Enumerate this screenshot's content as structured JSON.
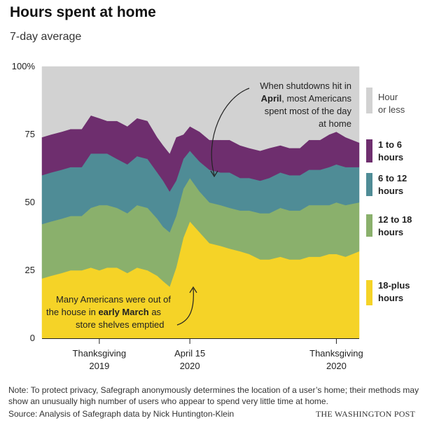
{
  "title": "Hours spent at home",
  "subtitle": "7-day average",
  "note": "Note: To protect privacy, Safegraph anonymously determines the location of a user’s home; their methods may show an unusually high number of users who appear to spend very little time at home.",
  "source": "Source: Analysis of Safegraph data by Nick Huntington-Klein",
  "brand": "THE WASHINGTON POST",
  "annotations": {
    "april_line1": "When shutdowns hit in",
    "april_line2_bold": "April",
    "april_line2_rest": ", most Americans",
    "april_line3": "spent most of the day",
    "april_line4": "at home",
    "march_line1": "Many Americans were out of",
    "march_line2_pre": "the house in ",
    "march_line2_bold": "early March",
    "march_line2_post": " as",
    "march_line3": "store shelves emptied"
  },
  "chart_data": {
    "type": "area",
    "stacked": true,
    "ylim": [
      0,
      100
    ],
    "yticks": [
      "0",
      "25",
      "50",
      "75",
      "100%"
    ],
    "ytick_values": [
      0,
      25,
      50,
      75,
      100
    ],
    "x_range": [
      "2019-09-01",
      "2020-12-31"
    ],
    "xticks": [
      {
        "date": "2019-11-28",
        "line1": "Thanksgiving",
        "line2": "2019"
      },
      {
        "date": "2020-04-15",
        "line1": "April 15",
        "line2": "2020"
      },
      {
        "date": "2020-11-26",
        "line1": "Thanksgiving",
        "line2": "2020"
      }
    ],
    "x": [
      "2019-09-01",
      "2019-09-15",
      "2019-10-01",
      "2019-10-15",
      "2019-11-01",
      "2019-11-15",
      "2019-11-28",
      "2019-12-10",
      "2019-12-25",
      "2020-01-10",
      "2020-01-25",
      "2020-02-10",
      "2020-02-25",
      "2020-03-05",
      "2020-03-15",
      "2020-03-25",
      "2020-04-05",
      "2020-04-15",
      "2020-04-30",
      "2020-05-15",
      "2020-06-01",
      "2020-06-15",
      "2020-07-01",
      "2020-07-15",
      "2020-08-01",
      "2020-08-15",
      "2020-09-01",
      "2020-09-15",
      "2020-10-01",
      "2020-10-15",
      "2020-11-01",
      "2020-11-15",
      "2020-11-26",
      "2020-12-10",
      "2020-12-31"
    ],
    "series": [
      {
        "name": "18-plus hours",
        "color": "#f5d327",
        "values": [
          22,
          23,
          24,
          25,
          25,
          26,
          25,
          26,
          26,
          24,
          26,
          25,
          23,
          21,
          19,
          26,
          37,
          43,
          39,
          35,
          34,
          33,
          32,
          31,
          29,
          29,
          30,
          29,
          29,
          30,
          30,
          31,
          31,
          30,
          32
        ]
      },
      {
        "name": "12 to 18 hours",
        "color": "#8ab06c",
        "values": [
          20,
          20,
          20,
          20,
          20,
          22,
          24,
          23,
          22,
          22,
          23,
          23,
          21,
          20,
          20,
          19,
          18,
          16,
          15,
          15,
          15,
          15,
          15,
          16,
          17,
          17,
          18,
          18,
          18,
          19,
          19,
          18,
          19,
          19,
          18
        ]
      },
      {
        "name": "6 to 12 hours",
        "color": "#4f8c96",
        "values": [
          18,
          18,
          18,
          18,
          18,
          20,
          19,
          19,
          18,
          18,
          18,
          18,
          17,
          17,
          15,
          13,
          11,
          10,
          11,
          12,
          12,
          13,
          12,
          12,
          12,
          13,
          13,
          13,
          13,
          13,
          13,
          14,
          14,
          14,
          13
        ]
      },
      {
        "name": "1 to 6 hours",
        "color": "#6e2e6e",
        "values": [
          14,
          14,
          14,
          14,
          14,
          14,
          13,
          12,
          14,
          14,
          14,
          14,
          13,
          13,
          14,
          16,
          9,
          9,
          11,
          11,
          12,
          12,
          12,
          11,
          11,
          11,
          10,
          10,
          10,
          11,
          11,
          12,
          12,
          11,
          9
        ]
      },
      {
        "name": "Hour or less",
        "color": "#d2d2d2",
        "values": [
          26,
          25,
          24,
          23,
          23,
          18,
          19,
          20,
          20,
          22,
          19,
          20,
          26,
          29,
          32,
          26,
          25,
          22,
          24,
          27,
          27,
          27,
          29,
          30,
          31,
          30,
          29,
          30,
          30,
          27,
          27,
          25,
          24,
          26,
          28
        ]
      }
    ],
    "legend": [
      {
        "line1": "Hour",
        "line2": "or less",
        "bold": false
      },
      {
        "line1": "1 to 6",
        "line2": "hours",
        "bold": true
      },
      {
        "line1": "6 to 12",
        "line2": "hours",
        "bold": true
      },
      {
        "line1": "12 to 18",
        "line2": "hours",
        "bold": true
      },
      {
        "line1": "18-plus",
        "line2": "hours",
        "bold": true
      }
    ],
    "grid": false,
    "legend_position": "right"
  }
}
